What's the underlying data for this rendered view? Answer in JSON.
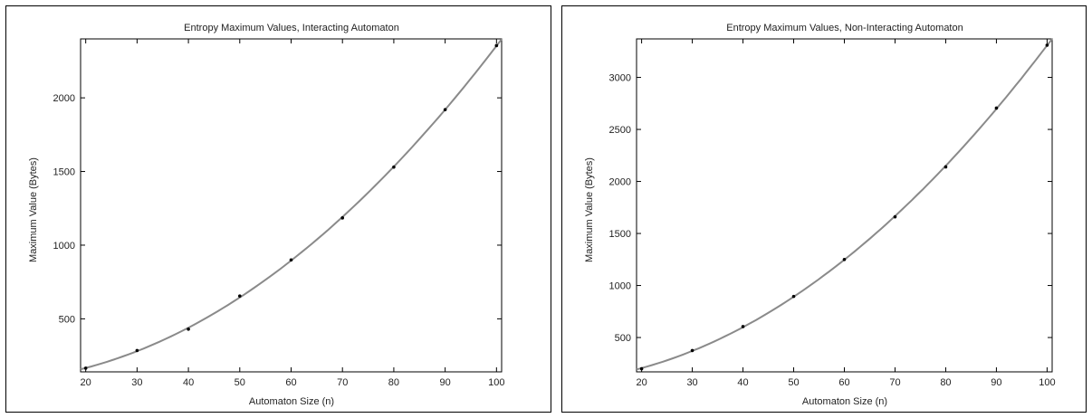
{
  "chart_data": [
    {
      "type": "scatter",
      "title": "Entropy Maximum Values, Interacting Automaton",
      "xlabel": "Automaton Size (n)",
      "ylabel": "Maximum Value (Bytes)",
      "xlim": [
        19,
        101
      ],
      "ylim": [
        140,
        2400
      ],
      "xticks": [
        20,
        30,
        40,
        50,
        60,
        70,
        80,
        90,
        100
      ],
      "yticks": [
        500,
        1000,
        1500,
        2000
      ],
      "grid": false,
      "points": {
        "x": [
          20,
          30,
          40,
          50,
          60,
          70,
          80,
          90,
          100
        ],
        "y": [
          165,
          285,
          430,
          655,
          900,
          1185,
          1530,
          1920,
          2355
        ]
      },
      "fit": {
        "type": "quadratic-curve",
        "x": [
          19,
          101
        ],
        "y": [
          155,
          2395
        ]
      }
    },
    {
      "type": "scatter",
      "title": "Entropy Maximum Values, Non-Interacting Automaton",
      "xlabel": "Automaton Size (n)",
      "ylabel": "Maximum Value (Bytes)",
      "xlim": [
        19,
        101
      ],
      "ylim": [
        170,
        3370
      ],
      "xticks": [
        20,
        30,
        40,
        50,
        60,
        70,
        80,
        90,
        100
      ],
      "yticks": [
        500,
        1000,
        1500,
        2000,
        2500,
        3000
      ],
      "grid": false,
      "points": {
        "x": [
          20,
          30,
          40,
          50,
          60,
          70,
          80,
          90,
          100
        ],
        "y": [
          200,
          375,
          605,
          895,
          1250,
          1660,
          2140,
          2705,
          3310
        ]
      },
      "fit": {
        "type": "quadratic-curve",
        "x": [
          19,
          101
        ],
        "y": [
          180,
          3360
        ]
      }
    }
  ]
}
